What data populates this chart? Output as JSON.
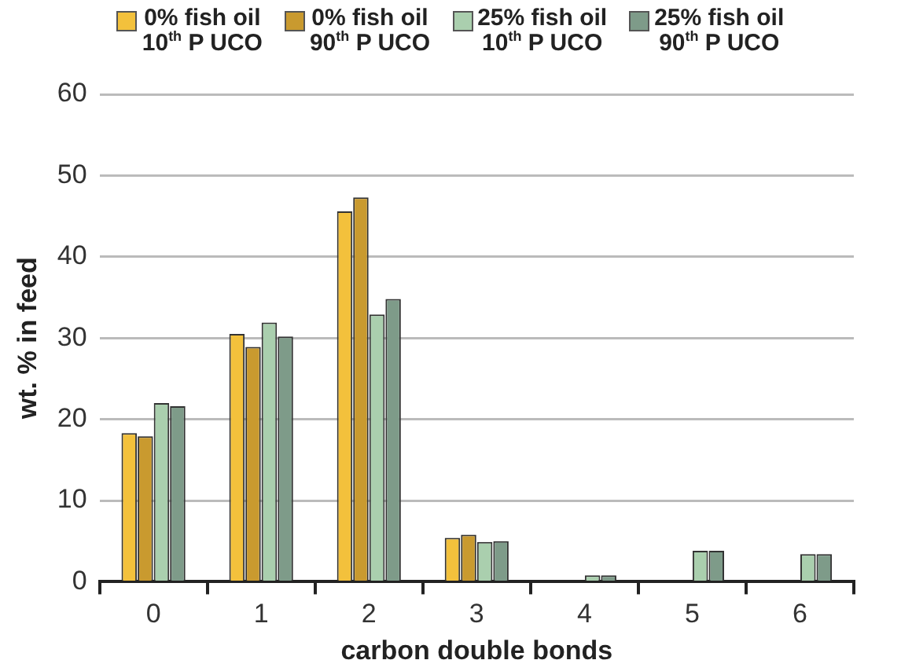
{
  "chart_data": {
    "type": "bar",
    "xlabel": "carbon double bonds",
    "ylabel": "wt. % in feed",
    "categories": [
      "0",
      "1",
      "2",
      "3",
      "4",
      "5",
      "6"
    ],
    "series": [
      {
        "name": "0% fish oil\n10$^{th}$ P UCO",
        "color": "#f3c13c",
        "values": [
          18.3,
          30.5,
          45.6,
          5.4,
          0,
          0,
          0
        ]
      },
      {
        "name": "0% fish oil\n90$^{th}$ P UCO",
        "color": "#c99a2f",
        "values": [
          17.9,
          28.9,
          47.3,
          5.8,
          0,
          0,
          0
        ]
      },
      {
        "name": "25% fish oil\n10$^{th}$ P UCO",
        "color": "#aacfae",
        "values": [
          22.0,
          31.9,
          32.9,
          4.9,
          0.8,
          3.8,
          3.4
        ]
      },
      {
        "name": "25% fish oil\n90$^{th}$ P UCO",
        "color": "#7e9b89",
        "values": [
          21.6,
          30.2,
          34.8,
          5.0,
          0.8,
          3.8,
          3.4
        ]
      }
    ],
    "ylim": [
      0,
      60
    ],
    "yticks": [
      0,
      10,
      20,
      30,
      40,
      50,
      60
    ],
    "grid": "y",
    "legend": "top"
  }
}
